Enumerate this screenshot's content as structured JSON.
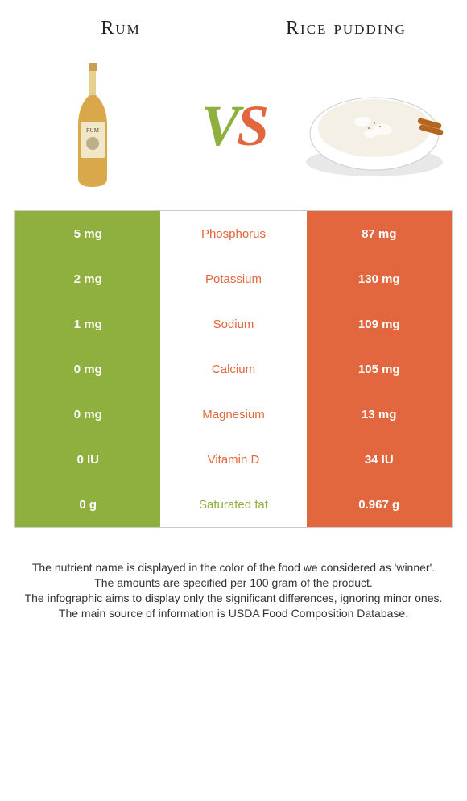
{
  "header": {
    "left_title": "Rum",
    "right_title": "Rice pudding"
  },
  "vs": {
    "v": "V",
    "s": "S"
  },
  "colors": {
    "left_bg": "#8fb03e",
    "right_bg": "#e2663e",
    "mid_bg": "#ffffff",
    "mid_text_winner_left": "#8fb03e",
    "mid_text_winner_right": "#e2663e"
  },
  "rows": [
    {
      "left": "5 mg",
      "mid": "Phosphorus",
      "right": "87 mg",
      "winner": "right"
    },
    {
      "left": "2 mg",
      "mid": "Potassium",
      "right": "130 mg",
      "winner": "right"
    },
    {
      "left": "1 mg",
      "mid": "Sodium",
      "right": "109 mg",
      "winner": "right"
    },
    {
      "left": "0 mg",
      "mid": "Calcium",
      "right": "105 mg",
      "winner": "right"
    },
    {
      "left": "0 mg",
      "mid": "Magnesium",
      "right": "13 mg",
      "winner": "right"
    },
    {
      "left": "0 IU",
      "mid": "Vitamin D",
      "right": "34 IU",
      "winner": "right"
    },
    {
      "left": "0 g",
      "mid": "Saturated fat",
      "right": "0.967 g",
      "winner": "left"
    }
  ],
  "footer": {
    "line1": "The nutrient name is displayed in the color of the food we considered as 'winner'.",
    "line2": "The amounts are specified per 100 gram of the product.",
    "line3": "The infographic aims to display only the significant differences, ignoring minor ones.",
    "line4": "The main source of information is USDA Food Composition Database."
  },
  "illustrations": {
    "bottle": {
      "body_fill": "#d9a84a",
      "cap_fill": "#c9a050",
      "label_fill": "#f0e6c8"
    },
    "bowl": {
      "bowl_fill": "#ffffff",
      "bowl_stroke": "#d0d0d0",
      "pudding_fill": "#f5f0e6",
      "shadow_fill": "#e8e8e8",
      "cinnamon_fill": "#b5651d"
    }
  }
}
